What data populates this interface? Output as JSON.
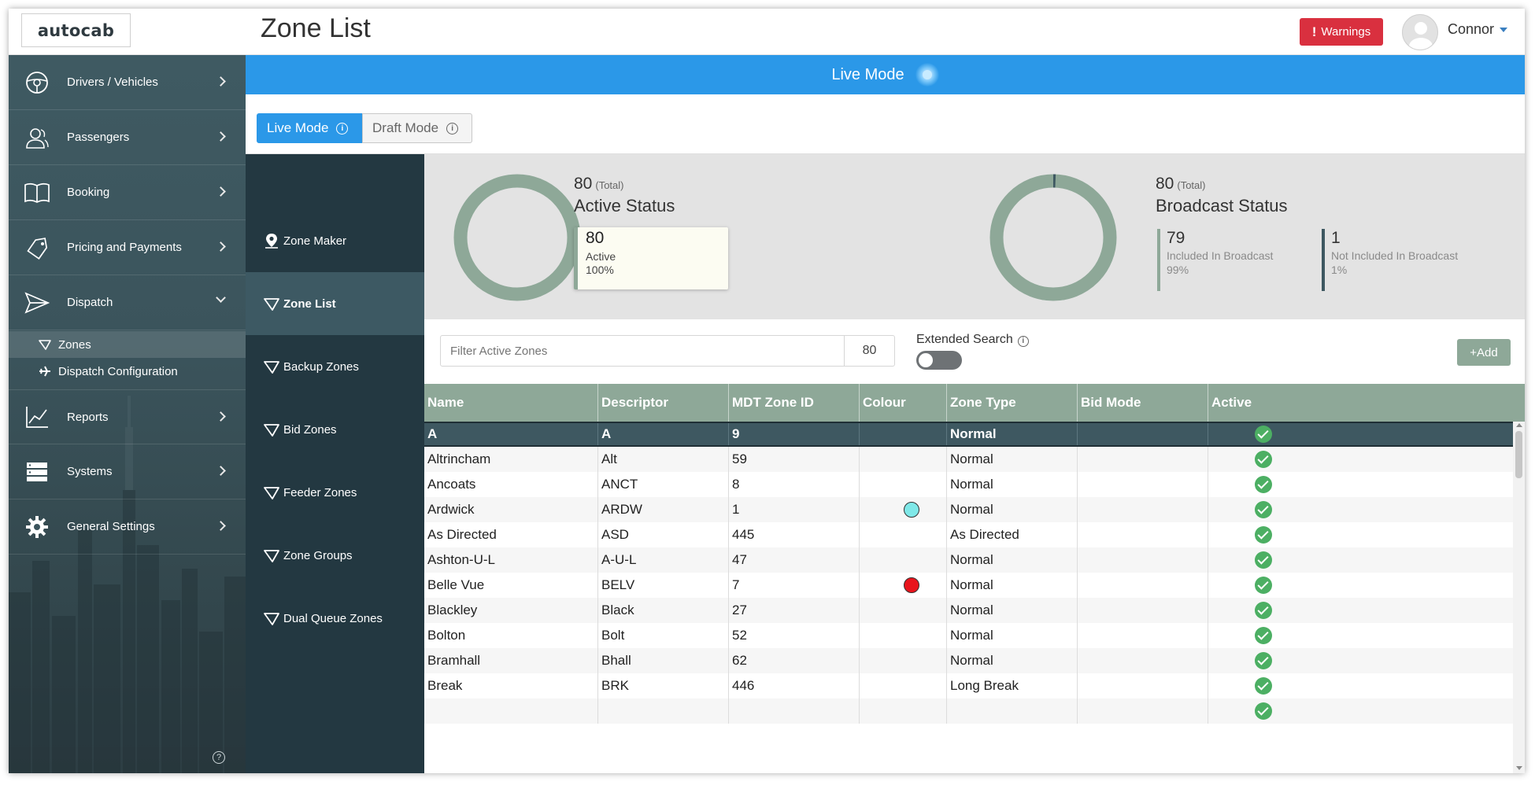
{
  "header": {
    "logo_text": "autocab",
    "page_title": "Zone List",
    "warnings_label": "Warnings",
    "user_name": "Connor"
  },
  "sidebar": {
    "items": [
      {
        "label": "Drivers / Vehicles",
        "icon": "steering-wheel-icon"
      },
      {
        "label": "Passengers",
        "icon": "users-icon"
      },
      {
        "label": "Booking",
        "icon": "book-icon"
      },
      {
        "label": "Pricing and Payments",
        "icon": "tag-icon"
      },
      {
        "label": "Dispatch",
        "icon": "paper-plane-icon",
        "expanded": true
      },
      {
        "label": "Reports",
        "icon": "line-chart-icon"
      },
      {
        "label": "Systems",
        "icon": "server-icon"
      },
      {
        "label": "General Settings",
        "icon": "gear-icon"
      }
    ],
    "dispatch_children": [
      {
        "label": "Zones",
        "icon": "zone-icon",
        "active": true
      },
      {
        "label": "Dispatch Configuration",
        "icon": "airplane-icon"
      }
    ]
  },
  "banner": {
    "label": "Live Mode"
  },
  "modes": {
    "live_label": "Live Mode",
    "draft_label": "Draft Mode"
  },
  "zone_nav": [
    {
      "label": "Zone Maker",
      "icon": "map-pin-icon"
    },
    {
      "label": "Zone List",
      "icon": "zone-icon",
      "active": true
    },
    {
      "label": "Backup Zones",
      "icon": "zone-icon"
    },
    {
      "label": "Bid Zones",
      "icon": "zone-icon"
    },
    {
      "label": "Feeder Zones",
      "icon": "zone-icon"
    },
    {
      "label": "Zone Groups",
      "icon": "zone-icon"
    },
    {
      "label": "Dual Queue Zones",
      "icon": "zone-icon"
    }
  ],
  "active_status": {
    "total": "80",
    "total_suffix": "(Total)",
    "title": "Active Status",
    "active_count": "80",
    "active_label": "Active",
    "active_pct": "100%",
    "active_fraction": 1.0,
    "ring_color": "#8ea898"
  },
  "broadcast_status": {
    "total": "80",
    "total_suffix": "(Total)",
    "title": "Broadcast Status",
    "included_count": "79",
    "included_label": "Included In Broadcast",
    "included_pct": "99%",
    "not_included_count": "1",
    "not_included_label": "Not Included In Broadcast",
    "not_included_pct": "1%",
    "included_fraction": 0.9875,
    "ring_color": "#8ea898",
    "segment_color": "#3e5861"
  },
  "filter": {
    "placeholder": "Filter Active Zones",
    "count": "80",
    "extended_search_label": "Extended Search",
    "extended_search_on": false,
    "add_label": "Add"
  },
  "table": {
    "columns": [
      "Name",
      "Descriptor",
      "MDT Zone ID",
      "Colour",
      "Zone Type",
      "Bid Mode",
      "Active"
    ],
    "rows": [
      {
        "name": "A",
        "descriptor": "A",
        "mdt": "9",
        "colour": "",
        "type": "Normal",
        "bid": "",
        "active": true,
        "selected": true
      },
      {
        "name": "Altrincham",
        "descriptor": "Alt",
        "mdt": "59",
        "colour": "",
        "type": "Normal",
        "bid": "",
        "active": true
      },
      {
        "name": "Ancoats",
        "descriptor": "ANCT",
        "mdt": "8",
        "colour": "",
        "type": "Normal",
        "bid": "",
        "active": true
      },
      {
        "name": "Ardwick",
        "descriptor": "ARDW",
        "mdt": "1",
        "colour": "#7fe8e8",
        "type": "Normal",
        "bid": "",
        "active": true
      },
      {
        "name": "As Directed",
        "descriptor": "ASD",
        "mdt": "445",
        "colour": "",
        "type": "As Directed",
        "bid": "",
        "active": true
      },
      {
        "name": "Ashton-U-L",
        "descriptor": "A-U-L",
        "mdt": "47",
        "colour": "",
        "type": "Normal",
        "bid": "",
        "active": true
      },
      {
        "name": "Belle Vue",
        "descriptor": "BELV",
        "mdt": "7",
        "colour": "#e8141c",
        "type": "Normal",
        "bid": "",
        "active": true
      },
      {
        "name": "Blackley",
        "descriptor": "Black",
        "mdt": "27",
        "colour": "",
        "type": "Normal",
        "bid": "",
        "active": true
      },
      {
        "name": "Bolton",
        "descriptor": "Bolt",
        "mdt": "52",
        "colour": "",
        "type": "Normal",
        "bid": "",
        "active": true
      },
      {
        "name": "Bramhall",
        "descriptor": "Bhall",
        "mdt": "62",
        "colour": "",
        "type": "Normal",
        "bid": "",
        "active": true
      },
      {
        "name": "Break",
        "descriptor": "BRK",
        "mdt": "446",
        "colour": "",
        "type": "Long Break",
        "bid": "",
        "active": true
      },
      {
        "name": "",
        "descriptor": "",
        "mdt": "",
        "colour": "",
        "type": "",
        "bid": "",
        "active": true
      }
    ]
  }
}
